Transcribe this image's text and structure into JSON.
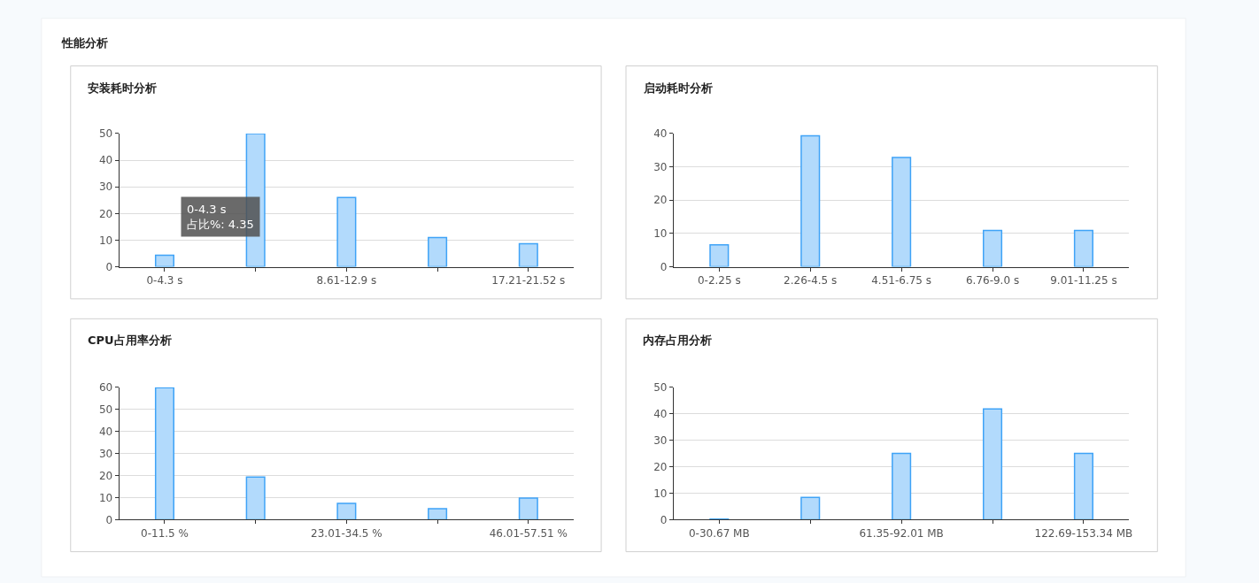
{
  "chart_data": [
    {
      "type": "bar",
      "title": "安装耗时分析",
      "categories": [
        "0-4.3 s",
        null,
        "8.61-12.9 s",
        null,
        "17.21-21.52 s"
      ],
      "values": [
        4.35,
        50,
        26,
        11,
        8.7
      ],
      "color": "#b2dafc",
      "ylim": [
        0,
        50
      ],
      "yticks": [
        0,
        10,
        20,
        30,
        40,
        50
      ],
      "grid": "y",
      "annotations": [
        "性能分析",
        {
          "text": "0-4.3 s\n占比%: 4.35",
          "x": "0-4.3 s",
          "y": 4.35
        }
      ]
    },
    {
      "type": "bar",
      "title": "启动耗时分析",
      "categories": [
        "0-2.25 s",
        "2.26-4.5 s",
        "4.51-6.75 s",
        "6.76-9.0 s",
        "9.01-11.25 s"
      ],
      "values": [
        6.6,
        39.3,
        32.8,
        10.9,
        10.9
      ],
      "color": "#b2dafc",
      "ylim": [
        0,
        40
      ],
      "yticks": [
        0,
        10,
        20,
        30,
        40
      ],
      "grid": "y"
    },
    {
      "type": "bar",
      "title": "CPU占用率分析",
      "categories": [
        "0-11.5 %",
        null,
        "23.01-34.5 %",
        null,
        "46.01-57.51 %"
      ],
      "values": [
        59.8,
        19.3,
        7.4,
        5,
        9.8
      ],
      "color": "#b2dafc",
      "ylim": [
        0,
        60
      ],
      "yticks": [
        0,
        10,
        20,
        30,
        40,
        50,
        60
      ],
      "grid": "y"
    },
    {
      "type": "bar",
      "title": "内存占用分析",
      "categories": [
        "0-30.67 MB",
        null,
        "61.35-92.01 MB",
        null,
        "122.69-153.34 MB"
      ],
      "values": [
        0.2,
        8.4,
        25,
        41.8,
        25
      ],
      "color": "#b2dafc",
      "ylim": [
        0,
        50
      ],
      "yticks": [
        0,
        10,
        20,
        30,
        40,
        50
      ],
      "grid": "y"
    }
  ]
}
